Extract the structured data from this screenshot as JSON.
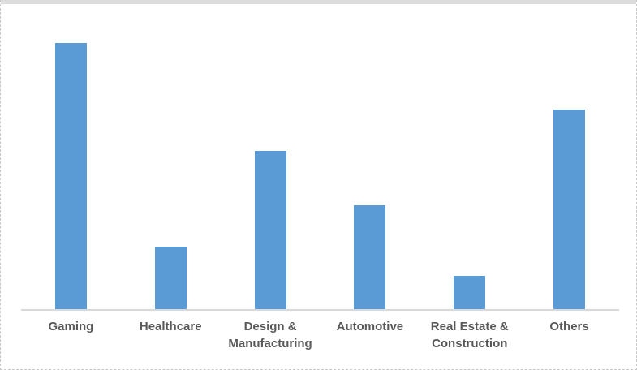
{
  "chart_data": {
    "type": "bar",
    "title": "",
    "xlabel": "",
    "ylabel": "",
    "categories": [
      "Gaming",
      "Healthcare",
      "Design & Manufacturing",
      "Automotive",
      "Real Estate & Construction",
      "Others"
    ],
    "values": [
      32,
      7.5,
      19,
      12.5,
      4,
      24
    ],
    "ylim": [
      0,
      32
    ],
    "gridlines": false,
    "legend_position": "none",
    "value_axis_labels_visible": false,
    "bar_color": "#5B9BD5",
    "axis_line_color": "#D9D9D9",
    "label_color": "#595959"
  }
}
